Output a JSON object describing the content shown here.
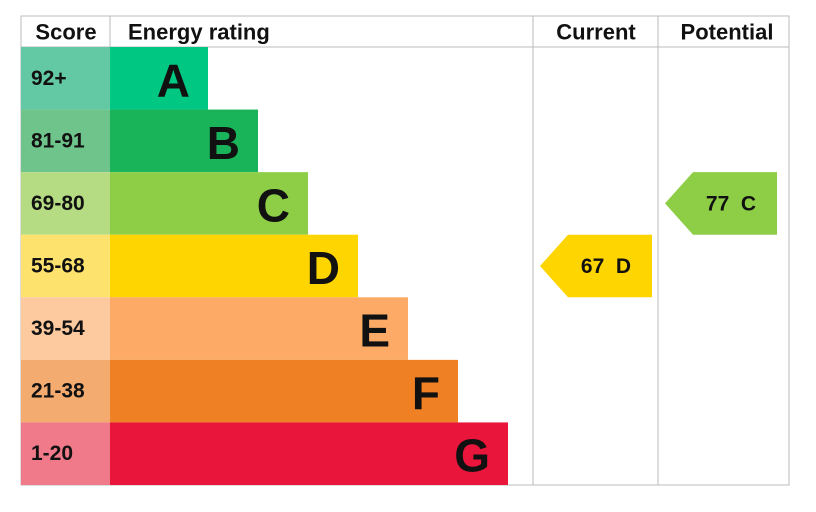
{
  "headers": {
    "score": "Score",
    "rating": "Energy rating",
    "current": "Current",
    "potential": "Potential"
  },
  "bands": [
    {
      "range": "92+",
      "letter": "A",
      "color": "#00c781",
      "light": "#63c8a4"
    },
    {
      "range": "81-91",
      "letter": "B",
      "color": "#19b459",
      "light": "#6fc48b"
    },
    {
      "range": "69-80",
      "letter": "C",
      "color": "#8dce46",
      "light": "#b5dc82"
    },
    {
      "range": "55-68",
      "letter": "D",
      "color": "#ffd500",
      "light": "#fde36d"
    },
    {
      "range": "39-54",
      "letter": "E",
      "color": "#fcaa65",
      "light": "#fdc99e"
    },
    {
      "range": "21-38",
      "letter": "F",
      "color": "#ef8023",
      "light": "#f4ab70"
    },
    {
      "range": "1-20",
      "letter": "G",
      "color": "#e9153b",
      "light": "#f07a8a"
    }
  ],
  "current": {
    "score": 67,
    "band": "D"
  },
  "potential": {
    "score": 77,
    "band": "C"
  }
}
